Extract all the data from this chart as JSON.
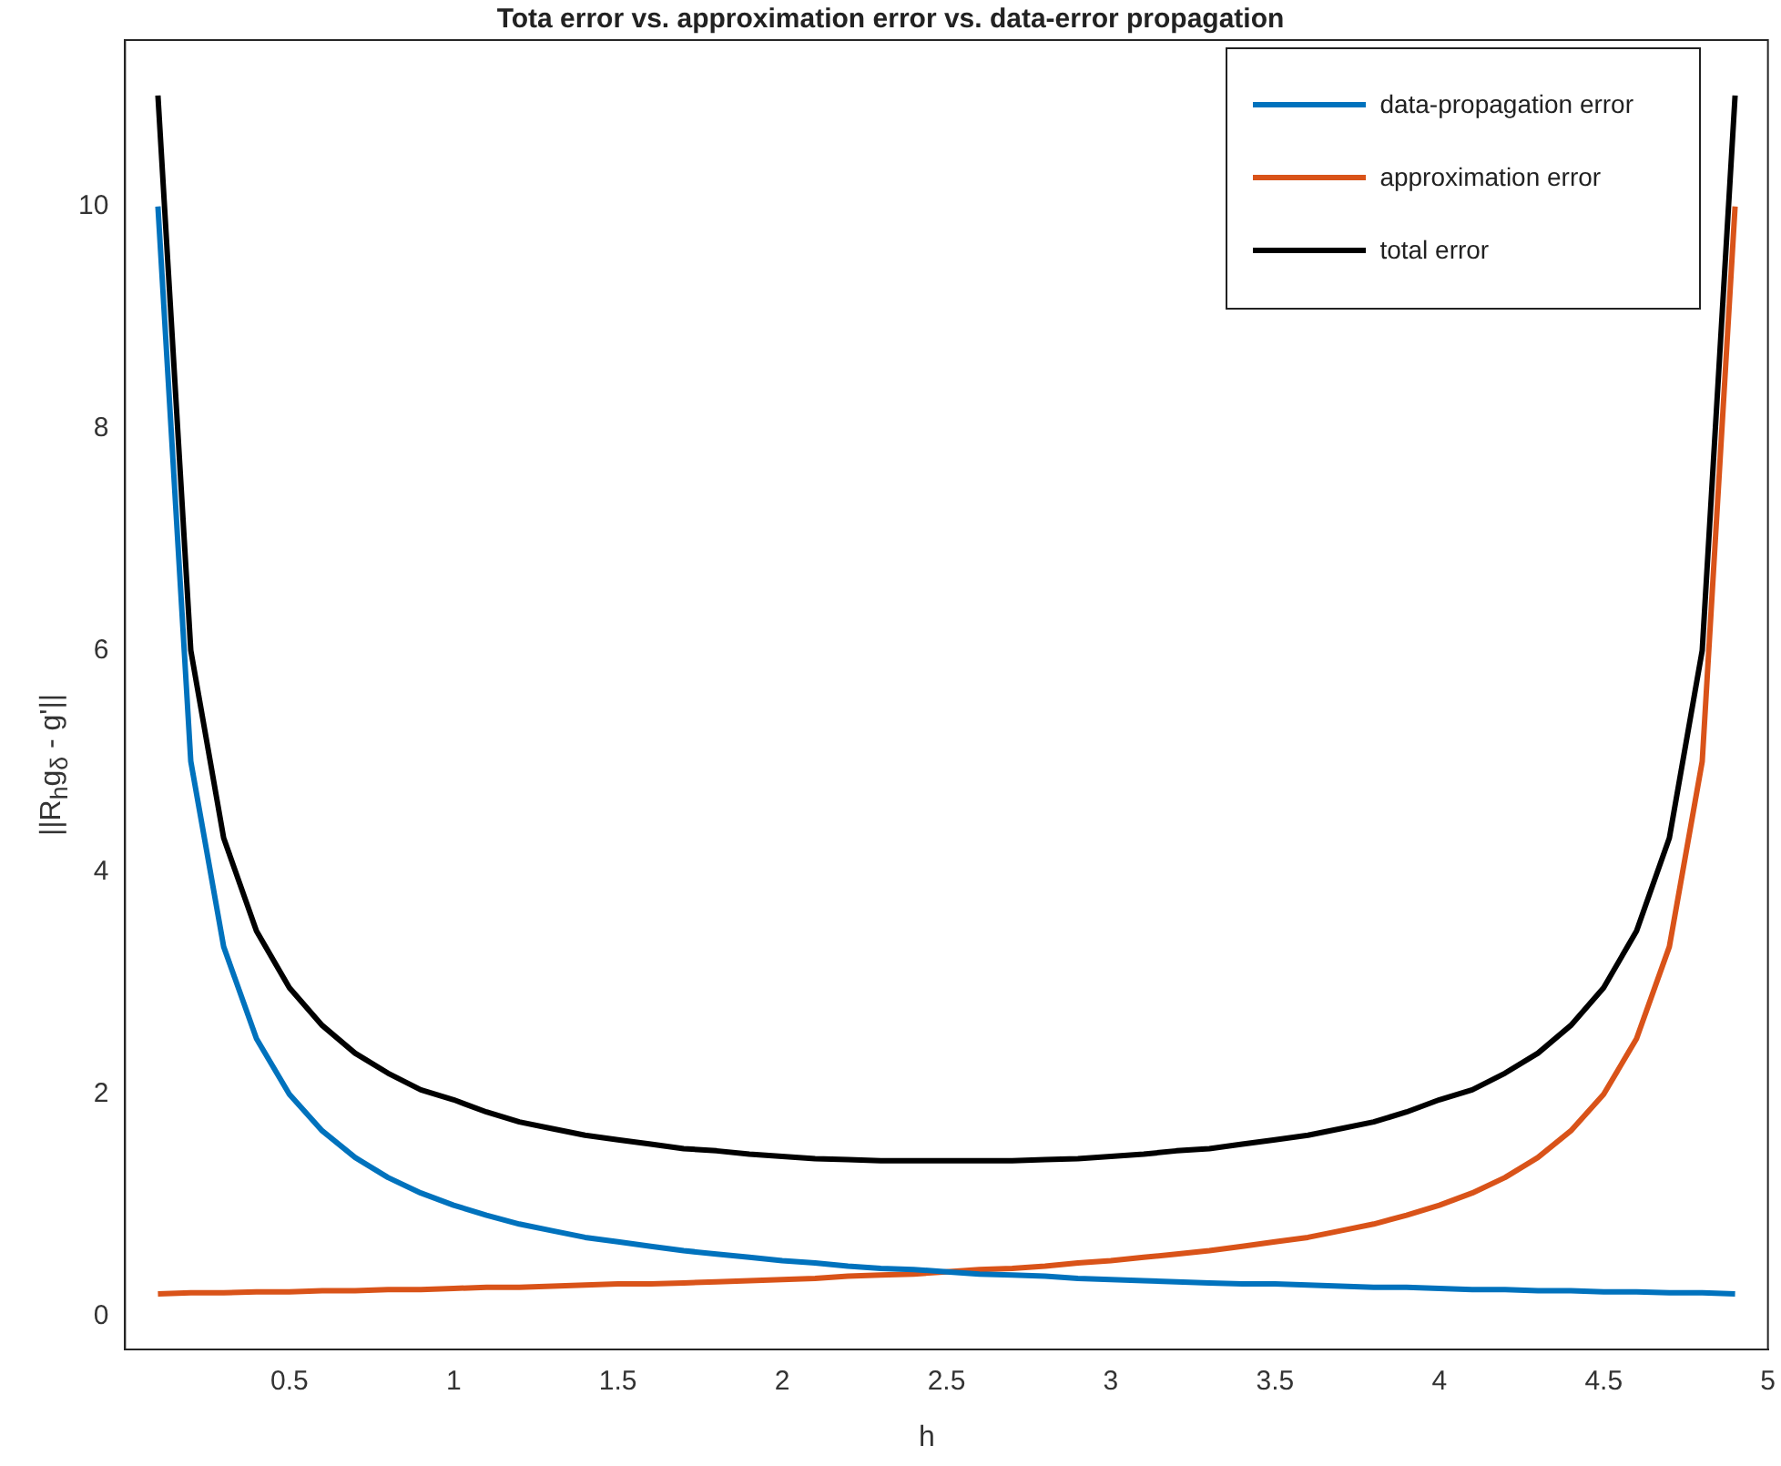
{
  "chart_data": {
    "type": "line",
    "title": "Tota error vs. approximation error vs. data-error propagation",
    "xlabel": "h",
    "ylabel": "||R$_{h}$g$_{δ}$ - g'||",
    "x": [
      0.1,
      0.2,
      0.3,
      0.4,
      0.5,
      0.6,
      0.7,
      0.8,
      0.9,
      1.0,
      1.1,
      1.2,
      1.3,
      1.4,
      1.5,
      1.6,
      1.7,
      1.8,
      1.9,
      2.0,
      2.1,
      2.2,
      2.3,
      2.4,
      2.5,
      2.6,
      2.7,
      2.8,
      2.9,
      3.0,
      3.1,
      3.2,
      3.3,
      3.4,
      3.5,
      3.6,
      3.7,
      3.8,
      3.9,
      4.0,
      4.1,
      4.2,
      4.3,
      4.4,
      4.5,
      4.6,
      4.7,
      4.8,
      4.9
    ],
    "series": [
      {
        "name": "data-propagation error",
        "color": "#0072bd",
        "values": [
          10,
          5,
          3.33,
          2.5,
          2,
          1.67,
          1.43,
          1.25,
          1.11,
          1,
          0.91,
          0.83,
          0.77,
          0.71,
          0.67,
          0.63,
          0.59,
          0.56,
          0.53,
          0.5,
          0.48,
          0.45,
          0.43,
          0.42,
          0.4,
          0.38,
          0.37,
          0.36,
          0.34,
          0.33,
          0.32,
          0.31,
          0.3,
          0.29,
          0.29,
          0.28,
          0.27,
          0.26,
          0.26,
          0.25,
          0.24,
          0.24,
          0.23,
          0.23,
          0.22,
          0.22,
          0.21,
          0.21,
          0.2
        ]
      },
      {
        "name": "approximation error",
        "color": "#d95319",
        "values": [
          0.2,
          0.21,
          0.21,
          0.22,
          0.22,
          0.23,
          0.23,
          0.24,
          0.24,
          0.25,
          0.26,
          0.26,
          0.27,
          0.28,
          0.29,
          0.29,
          0.3,
          0.31,
          0.32,
          0.33,
          0.34,
          0.36,
          0.37,
          0.38,
          0.4,
          0.42,
          0.43,
          0.45,
          0.48,
          0.5,
          0.53,
          0.56,
          0.59,
          0.63,
          0.67,
          0.71,
          0.77,
          0.83,
          0.91,
          1,
          1.11,
          1.25,
          1.43,
          1.67,
          2,
          2.5,
          3.33,
          5,
          10
        ]
      },
      {
        "name": "total error",
        "color": "#000000",
        "values": [
          11,
          6,
          4.31,
          3.47,
          2.96,
          2.62,
          2.37,
          2.19,
          2.04,
          1.95,
          1.84,
          1.75,
          1.69,
          1.63,
          1.59,
          1.55,
          1.51,
          1.49,
          1.46,
          1.44,
          1.42,
          1.41,
          1.4,
          1.4,
          1.4,
          1.4,
          1.4,
          1.41,
          1.42,
          1.44,
          1.46,
          1.49,
          1.51,
          1.55,
          1.59,
          1.63,
          1.69,
          1.75,
          1.84,
          1.95,
          2.04,
          2.19,
          2.37,
          2.62,
          2.96,
          3.47,
          4.31,
          6,
          11
        ]
      }
    ],
    "xlim": [
      0,
      5
    ],
    "xticks": [
      0.5,
      1,
      1.5,
      2,
      2.5,
      3,
      3.5,
      4,
      4.5,
      5
    ],
    "ylim": [
      -0.3,
      11.5
    ],
    "yticks": [
      0,
      2,
      4,
      6,
      8,
      10
    ],
    "grid": false,
    "legend": "top right",
    "marker": "none",
    "line_style": "solid"
  }
}
